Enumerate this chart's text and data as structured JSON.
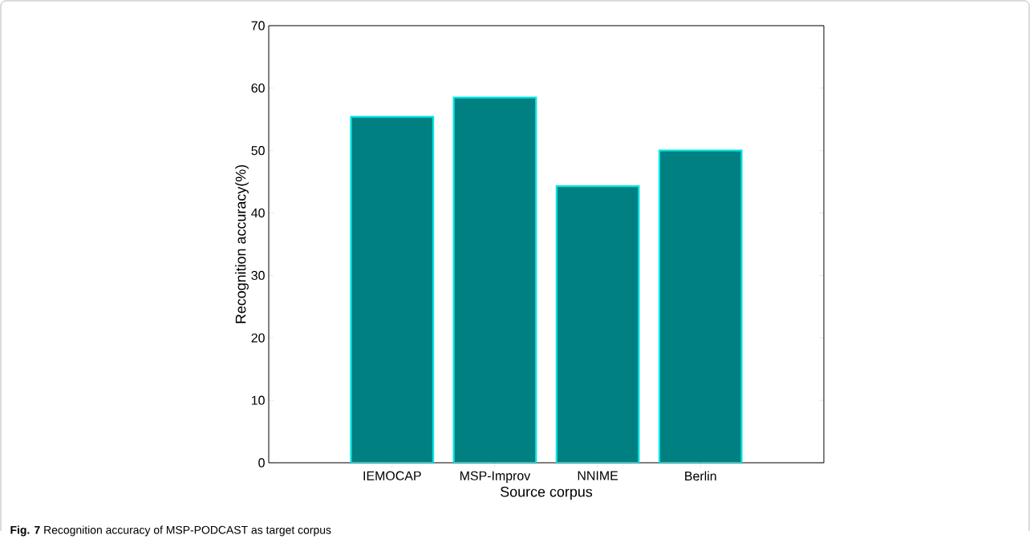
{
  "chart_data": {
    "type": "bar",
    "xlabel": "Source corpus",
    "ylabel": "Recognition accuracy(%)",
    "categories": [
      "IEMOCAP",
      "MSP-Improv",
      "NNIME",
      "Berlin"
    ],
    "values": [
      55.4,
      58.5,
      44.3,
      50.0
    ],
    "color": "#008080",
    "ylim": [
      0,
      70
    ],
    "yticks": [
      0,
      10,
      20,
      30,
      40,
      50,
      60,
      70
    ],
    "grid": false,
    "annotations": [
      "**Fig. 7** Recognition accuracy of MSP-PODCAST as target corpus"
    ]
  }
}
